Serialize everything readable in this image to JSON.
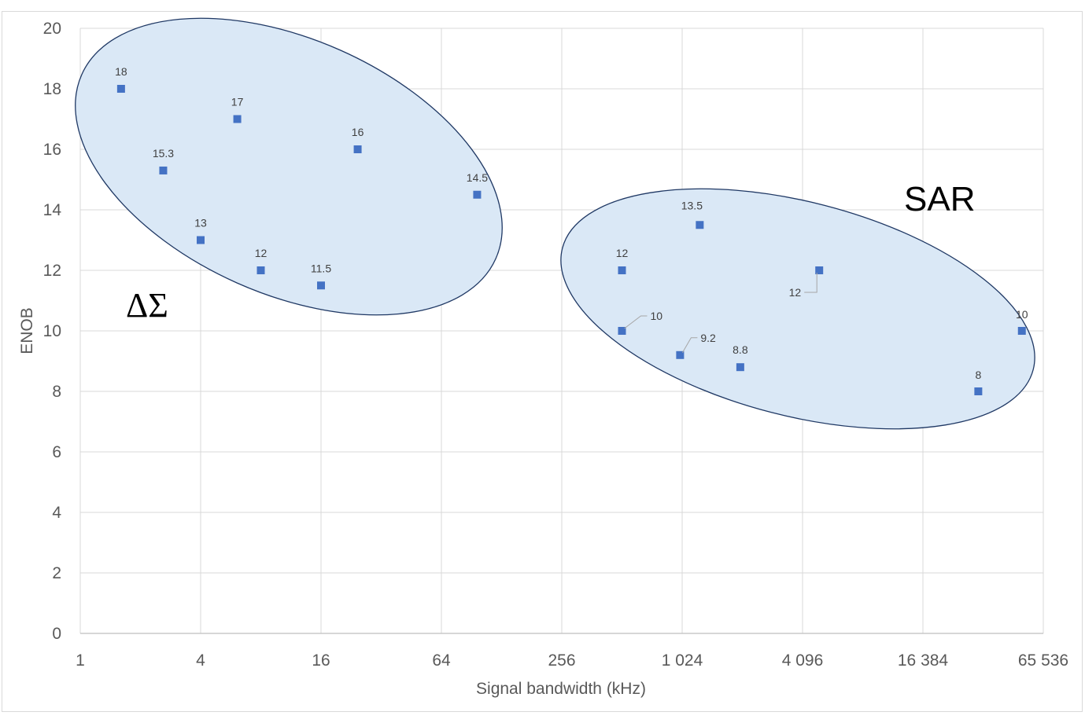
{
  "chart_data": {
    "type": "scatter",
    "title": "",
    "xlabel": "Signal bandwidth (kHz)",
    "ylabel": "ENOB",
    "xscale": "log2",
    "xlim": [
      1,
      65536
    ],
    "ylim": [
      0,
      20
    ],
    "xticks": [
      1,
      4,
      16,
      64,
      256,
      1024,
      4096,
      16384,
      65536
    ],
    "xtick_labels": [
      "1",
      "4",
      "16",
      "64",
      "256",
      "1 024",
      "4 096",
      "16 384",
      "65 536"
    ],
    "yticks": [
      0,
      2,
      4,
      6,
      8,
      10,
      12,
      14,
      16,
      18,
      20
    ],
    "ytick_labels": [
      "0",
      "2",
      "4",
      "6",
      "8",
      "10",
      "12",
      "14",
      "16",
      "18",
      "20"
    ],
    "grid": true,
    "marker_color": "#4472c4",
    "points": [
      {
        "x": 1.6,
        "y": 18,
        "label": "18"
      },
      {
        "x": 2.6,
        "y": 15.3,
        "label": "15.3"
      },
      {
        "x": 4,
        "y": 13,
        "label": "13"
      },
      {
        "x": 6.1,
        "y": 17,
        "label": "17"
      },
      {
        "x": 8,
        "y": 12,
        "label": "12"
      },
      {
        "x": 16,
        "y": 11.5,
        "label": "11.5"
      },
      {
        "x": 24.4,
        "y": 16,
        "label": "16"
      },
      {
        "x": 96.6,
        "y": 14.5,
        "label": "14.5"
      },
      {
        "x": 512,
        "y": 12,
        "label": "12"
      },
      {
        "x": 512,
        "y": 10,
        "label": "10"
      },
      {
        "x": 1000,
        "y": 9.2,
        "label": "9.2"
      },
      {
        "x": 1254,
        "y": 13.5,
        "label": "13.5"
      },
      {
        "x": 2000,
        "y": 8.8,
        "label": "8.8"
      },
      {
        "x": 4964,
        "y": 12,
        "label": "12"
      },
      {
        "x": 31000,
        "y": 8,
        "label": "8"
      },
      {
        "x": 51200,
        "y": 10,
        "label": "10"
      }
    ],
    "groups": [
      {
        "label": "ΔΣ",
        "fill": "#dae8f6",
        "stroke": "#1f3864"
      },
      {
        "label": "SAR",
        "fill": "#dae8f6",
        "stroke": "#1f3864"
      }
    ]
  }
}
